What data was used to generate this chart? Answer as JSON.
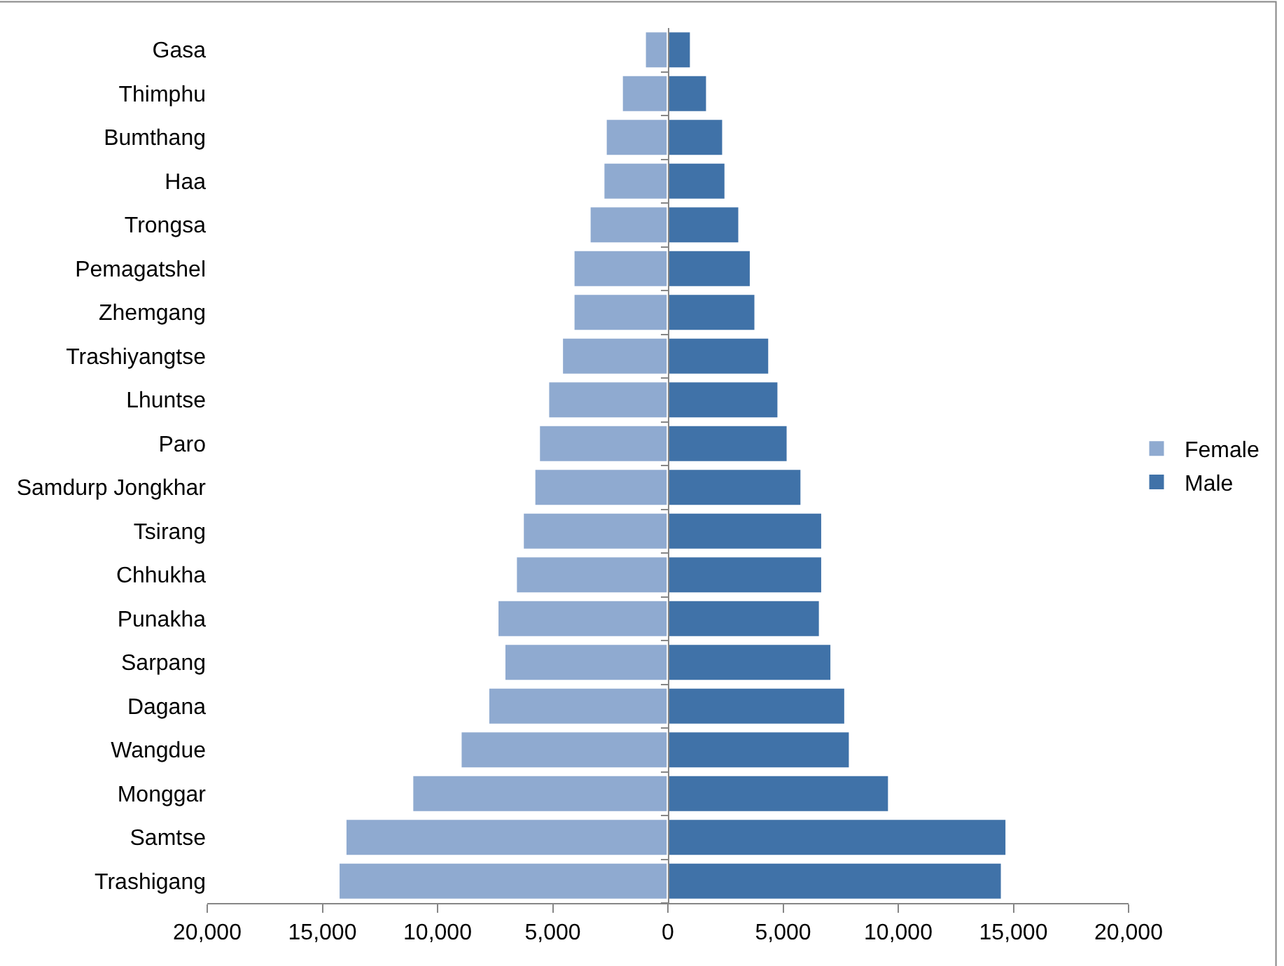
{
  "chart_data": {
    "type": "bar",
    "orientation": "horizontal",
    "stacked": true,
    "categories": [
      "Gasa",
      "Thimphu",
      "Bumthang",
      "Haa",
      "Trongsa",
      "Pemagatshel",
      "Zhemgang",
      "Trashiyangtse",
      "Lhuntse",
      "Paro",
      "Samdurp Jongkhar",
      "Tsirang",
      "Chhukha",
      "Punakha",
      "Sarpang",
      "Dagana",
      "Wangdue",
      "Monggar",
      "Samtse",
      "Trashigang"
    ],
    "series": [
      {
        "name": "Female",
        "color": "#8faad0",
        "values": [
          -1000,
          -2000,
          -2700,
          -2800,
          -3400,
          -4100,
          -4100,
          -4600,
          -5200,
          -5600,
          -5800,
          -6300,
          -6600,
          -7400,
          -7100,
          -7800,
          -9000,
          -11100,
          -14000,
          -14300
        ]
      },
      {
        "name": "Male",
        "color": "#4072a8",
        "values": [
          1000,
          1700,
          2400,
          2500,
          3100,
          3600,
          3800,
          4400,
          4800,
          5200,
          5800,
          6700,
          6700,
          6600,
          7100,
          7700,
          7900,
          9600,
          14700,
          14500
        ]
      }
    ],
    "xlim": [
      -20000,
      20000
    ],
    "xticks": [
      {
        "value": -20000,
        "label": "20,000"
      },
      {
        "value": -15000,
        "label": "15,000"
      },
      {
        "value": -10000,
        "label": "10,000"
      },
      {
        "value": -5000,
        "label": "5,000"
      },
      0,
      {
        "value": 5000,
        "label": "5,000"
      },
      {
        "value": 10000,
        "label": "10,000"
      },
      {
        "value": 15000,
        "label": "15,000"
      },
      {
        "value": 20000,
        "label": "20,000"
      }
    ],
    "legend": "right"
  }
}
